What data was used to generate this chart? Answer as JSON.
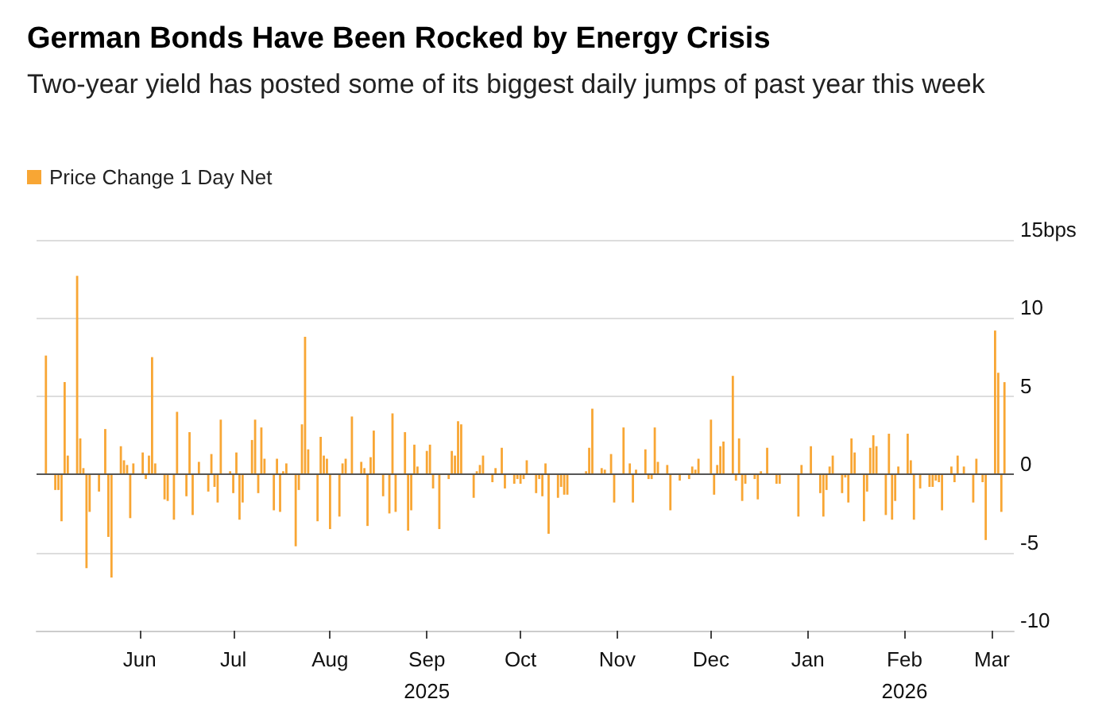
{
  "chart_data": {
    "type": "bar",
    "title": "German Bonds Have Been Rocked by Energy Crisis",
    "subtitle": "Two-year yield has posted some of its biggest daily jumps of past year this week",
    "x": [
      "2025-05-02",
      "2025-05-05",
      "2025-05-06",
      "2025-05-07",
      "2025-05-08",
      "2025-05-09",
      "2025-05-12",
      "2025-05-13",
      "2025-05-14",
      "2025-05-15",
      "2025-05-16",
      "2025-05-19",
      "2025-05-21",
      "2025-05-22",
      "2025-05-23",
      "2025-05-26",
      "2025-05-27",
      "2025-05-28",
      "2025-05-29",
      "2025-05-30",
      "2025-06-02",
      "2025-06-03",
      "2025-06-04",
      "2025-06-05",
      "2025-06-06",
      "2025-06-09",
      "2025-06-10",
      "2025-06-12",
      "2025-06-13",
      "2025-06-16",
      "2025-06-17",
      "2025-06-18",
      "2025-06-20",
      "2025-06-23",
      "2025-06-24",
      "2025-06-25",
      "2025-06-26",
      "2025-06-27",
      "2025-06-30",
      "2025-07-01",
      "2025-07-02",
      "2025-07-03",
      "2025-07-04",
      "2025-07-07",
      "2025-07-08",
      "2025-07-09",
      "2025-07-10",
      "2025-07-11",
      "2025-07-14",
      "2025-07-15",
      "2025-07-16",
      "2025-07-17",
      "2025-07-18",
      "2025-07-21",
      "2025-07-22",
      "2025-07-23",
      "2025-07-24",
      "2025-07-25",
      "2025-07-28",
      "2025-07-29",
      "2025-07-30",
      "2025-07-31",
      "2025-08-01",
      "2025-08-04",
      "2025-08-05",
      "2025-08-06",
      "2025-08-08",
      "2025-08-11",
      "2025-08-12",
      "2025-08-13",
      "2025-08-14",
      "2025-08-15",
      "2025-08-18",
      "2025-08-20",
      "2025-08-21",
      "2025-08-22",
      "2025-08-25",
      "2025-08-26",
      "2025-08-27",
      "2025-08-28",
      "2025-08-29",
      "2025-09-01",
      "2025-09-02",
      "2025-09-03",
      "2025-09-05",
      "2025-09-08",
      "2025-09-09",
      "2025-09-10",
      "2025-09-11",
      "2025-09-12",
      "2025-09-16",
      "2025-09-17",
      "2025-09-18",
      "2025-09-19",
      "2025-09-22",
      "2025-09-23",
      "2025-09-25",
      "2025-09-26",
      "2025-09-29",
      "2025-09-30",
      "2025-10-01",
      "2025-10-02",
      "2025-10-03",
      "2025-10-06",
      "2025-10-07",
      "2025-10-08",
      "2025-10-09",
      "2025-10-10",
      "2025-10-13",
      "2025-10-14",
      "2025-10-15",
      "2025-10-16",
      "2025-10-22",
      "2025-10-23",
      "2025-10-24",
      "2025-10-27",
      "2025-10-28",
      "2025-10-30",
      "2025-10-31",
      "2025-11-03",
      "2025-11-05",
      "2025-11-06",
      "2025-11-07",
      "2025-11-10",
      "2025-11-11",
      "2025-11-12",
      "2025-11-13",
      "2025-11-14",
      "2025-11-17",
      "2025-11-18",
      "2025-11-21",
      "2025-11-24",
      "2025-11-25",
      "2025-11-26",
      "2025-11-27",
      "2025-12-01",
      "2025-12-02",
      "2025-12-03",
      "2025-12-04",
      "2025-12-05",
      "2025-12-08",
      "2025-12-09",
      "2025-12-10",
      "2025-12-11",
      "2025-12-12",
      "2025-12-15",
      "2025-12-16",
      "2025-12-17",
      "2025-12-19",
      "2025-12-22",
      "2025-12-23",
      "2025-12-29",
      "2025-12-30",
      "2026-01-02",
      "2026-01-05",
      "2026-01-06",
      "2026-01-07",
      "2026-01-08",
      "2026-01-09",
      "2026-01-12",
      "2026-01-13",
      "2026-01-14",
      "2026-01-15",
      "2026-01-16",
      "2026-01-19",
      "2026-01-20",
      "2026-01-21",
      "2026-01-22",
      "2026-01-23",
      "2026-01-26",
      "2026-01-27",
      "2026-01-28",
      "2026-01-29",
      "2026-01-30",
      "2026-02-02",
      "2026-02-03",
      "2026-02-04",
      "2026-02-06",
      "2026-02-09",
      "2026-02-10",
      "2026-02-11",
      "2026-02-12",
      "2026-02-13",
      "2026-02-16",
      "2026-02-17",
      "2026-02-18",
      "2026-02-20",
      "2026-02-23",
      "2026-02-24",
      "2026-02-26",
      "2026-02-27",
      "2026-03-02",
      "2026-03-03",
      "2026-03-04",
      "2026-03-05"
    ],
    "series": [
      {
        "name": "Price Change 1 Day Net",
        "color": "#f8a634",
        "values": [
          7.6,
          -1.0,
          -1.0,
          -3.0,
          5.9,
          1.2,
          12.7,
          2.3,
          0.4,
          -6.0,
          -2.4,
          -1.1,
          2.9,
          -4.0,
          -6.6,
          1.8,
          0.9,
          0.6,
          -2.8,
          0.7,
          1.4,
          -0.3,
          1.2,
          7.5,
          0.7,
          -1.6,
          -1.7,
          -2.9,
          4.0,
          -1.4,
          2.7,
          -2.6,
          0.8,
          -1.1,
          1.3,
          -0.8,
          -1.8,
          3.5,
          0.2,
          -1.2,
          1.4,
          -2.9,
          -1.8,
          2.2,
          3.5,
          -1.2,
          3.0,
          1.0,
          -2.3,
          1.0,
          -2.4,
          0.2,
          0.7,
          -4.6,
          -1.0,
          3.2,
          8.8,
          1.6,
          -3.0,
          2.4,
          1.2,
          1.0,
          -3.5,
          -2.7,
          0.7,
          1.0,
          3.7,
          0.8,
          0.4,
          -3.3,
          1.1,
          2.8,
          -1.4,
          -2.5,
          3.9,
          -2.4,
          2.7,
          -3.6,
          -2.3,
          1.9,
          0.5,
          1.5,
          1.9,
          -0.9,
          -3.5,
          -0.3,
          1.5,
          1.2,
          3.4,
          3.2,
          -1.5,
          0.2,
          0.6,
          1.2,
          -0.5,
          0.4,
          1.7,
          -0.9,
          -0.6,
          -0.3,
          -0.6,
          -0.3,
          0.9,
          -1.2,
          -0.3,
          -1.4,
          0.7,
          -3.8,
          -1.5,
          -0.8,
          -1.3,
          -1.3,
          0.2,
          1.7,
          4.2,
          0.4,
          0.3,
          1.3,
          -1.8,
          3.0,
          0.7,
          -1.8,
          0.3,
          1.6,
          -0.3,
          -0.3,
          3.0,
          0.8,
          0.6,
          -2.3,
          -0.4,
          -0.3,
          0.5,
          0.3,
          1.0,
          3.5,
          -1.3,
          0.6,
          1.8,
          2.1,
          6.3,
          -0.4,
          2.3,
          -1.7,
          -0.6,
          -0.3,
          -1.6,
          0.2,
          1.7,
          -0.6,
          -0.6,
          -2.7,
          0.6,
          1.8,
          -1.2,
          -2.7,
          -1.0,
          0.5,
          1.2,
          -1.2,
          -0.2,
          -1.8,
          2.3,
          1.4,
          -3.0,
          -1.1,
          1.7,
          2.5,
          1.8,
          -2.6,
          2.6,
          -2.9,
          -1.7,
          0.5,
          2.6,
          0.9,
          -2.9,
          -0.9,
          -0.8,
          -0.8,
          -0.4,
          -0.5,
          -2.3,
          0.5,
          -0.5,
          1.2,
          0.5,
          -1.8,
          1.0,
          -0.5,
          -4.2,
          9.2,
          6.5,
          -2.4,
          5.9
        ]
      }
    ],
    "xlim": [
      "2025-04-29",
      "2026-03-08"
    ],
    "xticks": [
      {
        "value": "2025-06-01",
        "label": "Jun"
      },
      {
        "value": "2025-07-01",
        "label": "Jul"
      },
      {
        "value": "2025-08-01",
        "label": "Aug"
      },
      {
        "value": "2025-09-01",
        "label": "Sep\n2025"
      },
      {
        "value": "2025-10-01",
        "label": "Oct"
      },
      {
        "value": "2025-11-01",
        "label": "Nov"
      },
      {
        "value": "2025-12-01",
        "label": "Dec"
      },
      {
        "value": "2026-01-01",
        "label": "Jan"
      },
      {
        "value": "2026-02-01",
        "label": "Feb\n2026"
      },
      {
        "value": "2026-03-01",
        "label": "Mar"
      }
    ],
    "ylim": [
      -10,
      15
    ],
    "yticks": [
      -10,
      -5,
      0,
      5,
      10,
      {
        "value": 15,
        "label": "15bps"
      }
    ],
    "ref_lines": [
      {
        "axis": "y",
        "value": 0,
        "color": "#555555"
      }
    ],
    "grid": "y",
    "legend": "top left"
  }
}
